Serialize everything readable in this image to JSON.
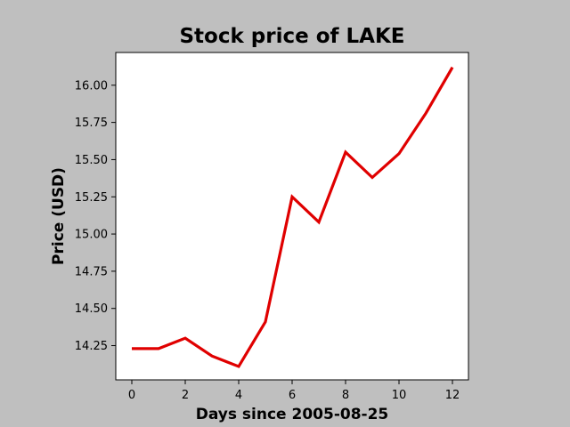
{
  "chart_data": {
    "type": "line",
    "title": "Stock price of LAKE",
    "xlabel": "Days since 2005-08-25",
    "ylabel": "Price (USD)",
    "x": [
      0,
      1,
      2,
      3,
      4,
      5,
      6,
      7,
      8,
      9,
      10,
      11,
      12
    ],
    "series": [
      {
        "values": [
          14.23,
          14.23,
          14.3,
          14.18,
          14.11,
          14.41,
          15.25,
          15.08,
          15.55,
          15.38,
          15.54,
          15.81,
          16.12
        ]
      }
    ],
    "xlim": [
      -0.6,
      12.6
    ],
    "ylim": [
      14.02,
      16.22
    ],
    "xticks": [
      0,
      2,
      4,
      6,
      8,
      10,
      12
    ],
    "yticks": [
      "14.25",
      "14.50",
      "14.75",
      "15.00",
      "15.25",
      "15.50",
      "15.75",
      "16.00"
    ],
    "grid": false,
    "colors": {
      "line": "#e00000",
      "background": "#bfbfbf",
      "plot_background": "#ffffff"
    }
  }
}
